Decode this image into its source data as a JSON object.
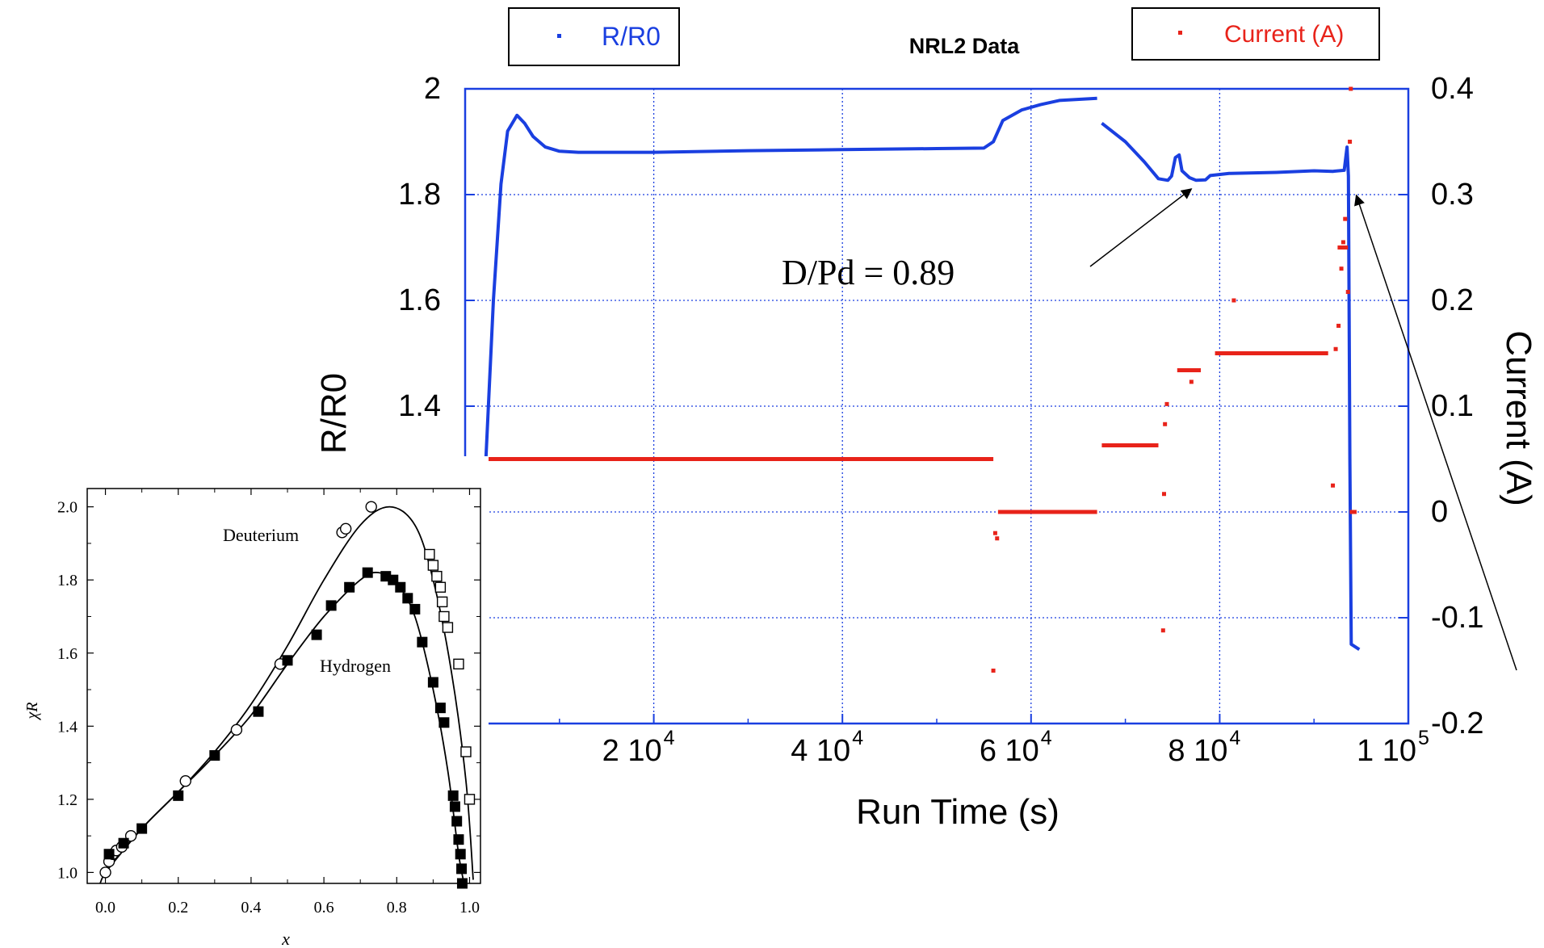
{
  "chart_data": [
    {
      "type": "scatter",
      "title": "NRL2 Data",
      "xlabel": "Run Time (s)",
      "ylabel_left": "R/R0",
      "ylabel_right": "Current (A)",
      "x_ticks": [
        {
          "value": 20000,
          "mantissa": "2 10",
          "exponent": "4"
        },
        {
          "value": 40000,
          "mantissa": "4 10",
          "exponent": "4"
        },
        {
          "value": 60000,
          "mantissa": "6 10",
          "exponent": "4"
        },
        {
          "value": 80000,
          "mantissa": "8 10",
          "exponent": "4"
        },
        {
          "value": 100000,
          "mantissa": "1 10",
          "exponent": "5"
        }
      ],
      "y_left_ticks": [
        "2",
        "1.8",
        "1.6",
        "1.4"
      ],
      "y_right_ticks": [
        "0.4",
        "0.3",
        "0.2",
        "0.1",
        "0",
        "-0.1",
        "-0.2"
      ],
      "xlim": [
        0,
        100000
      ],
      "ylim_left": [
        0.8,
        2.0
      ],
      "ylim_right": [
        -0.2,
        0.4
      ],
      "grid": true,
      "legend_left": "R/R0",
      "legend_right": "Current (A)",
      "series": [
        {
          "name": "R/R0",
          "color": "#1a3fe0",
          "axis": "left",
          "segments": [
            [
              [
                0,
                1.1
              ],
              [
                500,
                0.95
              ],
              [
                900,
                0.95
              ],
              [
                1500,
                1.0
              ],
              [
                2200,
                1.3
              ],
              [
                3000,
                1.6
              ],
              [
                3800,
                1.82
              ],
              [
                4500,
                1.92
              ],
              [
                5500,
                1.95
              ],
              [
                6300,
                1.935
              ],
              [
                7200,
                1.91
              ],
              [
                8500,
                1.89
              ],
              [
                10000,
                1.882
              ],
              [
                12000,
                1.88
              ],
              [
                20000,
                1.88
              ],
              [
                30000,
                1.883
              ],
              [
                40000,
                1.885
              ],
              [
                50000,
                1.887
              ],
              [
                55000,
                1.888
              ],
              [
                56000,
                1.9
              ],
              [
                57000,
                1.94
              ],
              [
                59000,
                1.96
              ],
              [
                61000,
                1.97
              ],
              [
                63000,
                1.978
              ],
              [
                67000,
                1.982
              ]
            ],
            [
              [
                67500,
                1.935
              ],
              [
                70000,
                1.9
              ],
              [
                72000,
                1.862
              ],
              [
                73500,
                1.83
              ],
              [
                74500,
                1.827
              ],
              [
                74900,
                1.835
              ],
              [
                75300,
                1.87
              ],
              [
                75700,
                1.875
              ],
              [
                76000,
                1.845
              ],
              [
                76800,
                1.832
              ],
              [
                77500,
                1.827
              ],
              [
                78500,
                1.828
              ],
              [
                79000,
                1.836
              ],
              [
                81000,
                1.84
              ],
              [
                86000,
                1.842
              ],
              [
                90000,
                1.845
              ],
              [
                92000,
                1.844
              ],
              [
                93200,
                1.846
              ],
              [
                93500,
                1.89
              ],
              [
                93650,
                1.835
              ],
              [
                93800,
                1.3
              ],
              [
                93950,
                0.95
              ],
              [
                94800,
                0.94
              ]
            ]
          ]
        },
        {
          "name": "Current (A)",
          "color": "#e8231a",
          "axis": "right",
          "segments": [
            [
              [
                2000,
                0.05
              ],
              [
                56000,
                0.05
              ]
            ],
            [
              [
                56500,
                0.0
              ],
              [
                67000,
                0.0
              ]
            ],
            [
              [
                67500,
                0.063
              ],
              [
                73500,
                0.063
              ]
            ],
            [
              [
                75500,
                0.134
              ],
              [
                78000,
                0.134
              ]
            ],
            [
              [
                79500,
                0.15
              ],
              [
                91500,
                0.15
              ]
            ],
            [
              [
                92500,
                0.25
              ],
              [
                93600,
                0.25
              ]
            ]
          ],
          "points": [
            [
              0,
              -0.03
            ],
            [
              200,
              0.003
            ],
            [
              400,
              0.028
            ],
            [
              600,
              0.042
            ],
            [
              1000,
              0.032
            ],
            [
              700,
              0.0
            ],
            [
              56000,
              -0.15
            ],
            [
              56200,
              -0.02
            ],
            [
              56400,
              -0.025
            ],
            [
              74000,
              -0.112
            ],
            [
              74100,
              0.017
            ],
            [
              74200,
              0.083
            ],
            [
              74400,
              0.102
            ],
            [
              77000,
              0.123
            ],
            [
              81500,
              0.2
            ],
            [
              92000,
              0.025
            ],
            [
              92300,
              0.154
            ],
            [
              92600,
              0.176
            ],
            [
              92900,
              0.23
            ],
            [
              93100,
              0.255
            ],
            [
              93300,
              0.277
            ],
            [
              93600,
              0.208
            ],
            [
              93800,
              0.35
            ],
            [
              93900,
              0.4
            ],
            [
              94000,
              0.0
            ],
            [
              94300,
              0.0
            ]
          ]
        }
      ],
      "annotations": [
        {
          "text": "D/Pd = 0.89",
          "target_x": 77000,
          "target_y": 1.82
        },
        {
          "text": "",
          "target_x": 93800,
          "target_y": 1.82
        }
      ]
    },
    {
      "type": "scatter",
      "title": "",
      "xlabel": "x",
      "ylabel": "χR",
      "xlim": [
        -0.05,
        1.03
      ],
      "ylim": [
        0.97,
        2.05
      ],
      "x_ticks": [
        "0.0",
        "0.2",
        "0.4",
        "0.6",
        "0.8",
        "1.0"
      ],
      "y_ticks": [
        "2.0",
        "1.8",
        "1.6",
        "1.4",
        "1.2",
        "1.0"
      ],
      "series": [
        {
          "name": "Deuterium",
          "marker": "open",
          "points": [
            [
              0.0,
              1.0
            ],
            [
              0.01,
              1.03
            ],
            [
              0.02,
              1.05
            ],
            [
              0.03,
              1.06
            ],
            [
              0.045,
              1.07
            ],
            [
              0.07,
              1.1
            ],
            [
              0.22,
              1.25
            ],
            [
              0.36,
              1.39
            ],
            [
              0.48,
              1.57
            ],
            [
              0.65,
              1.93
            ],
            [
              0.66,
              1.94
            ],
            [
              0.73,
              2.0
            ],
            [
              0.89,
              1.87
            ],
            [
              0.9,
              1.84
            ],
            [
              0.91,
              1.81
            ],
            [
              0.92,
              1.78
            ],
            [
              0.925,
              1.74
            ],
            [
              0.93,
              1.7
            ],
            [
              0.94,
              1.67
            ],
            [
              0.97,
              1.57
            ],
            [
              0.99,
              1.33
            ],
            [
              1.0,
              1.2
            ]
          ],
          "curve": [
            [
              -0.02,
              0.94
            ],
            [
              0.0,
              1.0
            ],
            [
              0.1,
              1.12
            ],
            [
              0.2,
              1.22
            ],
            [
              0.3,
              1.33
            ],
            [
              0.4,
              1.46
            ],
            [
              0.5,
              1.62
            ],
            [
              0.6,
              1.8
            ],
            [
              0.7,
              1.95
            ],
            [
              0.78,
              2.0
            ],
            [
              0.85,
              1.95
            ],
            [
              0.9,
              1.8
            ],
            [
              0.95,
              1.55
            ],
            [
              0.99,
              1.25
            ],
            [
              1.01,
              0.98
            ]
          ]
        },
        {
          "name": "Hydrogen",
          "marker": "filled",
          "points": [
            [
              0.01,
              1.05
            ],
            [
              0.05,
              1.08
            ],
            [
              0.1,
              1.12
            ],
            [
              0.2,
              1.21
            ],
            [
              0.3,
              1.32
            ],
            [
              0.42,
              1.44
            ],
            [
              0.5,
              1.58
            ],
            [
              0.58,
              1.65
            ],
            [
              0.62,
              1.73
            ],
            [
              0.67,
              1.78
            ],
            [
              0.72,
              1.82
            ],
            [
              0.77,
              1.81
            ],
            [
              0.79,
              1.8
            ],
            [
              0.81,
              1.78
            ],
            [
              0.83,
              1.75
            ],
            [
              0.85,
              1.72
            ],
            [
              0.87,
              1.63
            ],
            [
              0.9,
              1.52
            ],
            [
              0.92,
              1.45
            ],
            [
              0.93,
              1.41
            ],
            [
              0.955,
              1.21
            ],
            [
              0.96,
              1.18
            ],
            [
              0.965,
              1.14
            ],
            [
              0.97,
              1.09
            ],
            [
              0.975,
              1.05
            ],
            [
              0.978,
              1.01
            ],
            [
              0.98,
              0.97
            ]
          ],
          "curve": [
            [
              0.0,
              1.0
            ],
            [
              0.1,
              1.12
            ],
            [
              0.2,
              1.22
            ],
            [
              0.3,
              1.32
            ],
            [
              0.4,
              1.43
            ],
            [
              0.5,
              1.57
            ],
            [
              0.6,
              1.7
            ],
            [
              0.7,
              1.8
            ],
            [
              0.75,
              1.82
            ],
            [
              0.8,
              1.79
            ],
            [
              0.85,
              1.7
            ],
            [
              0.9,
              1.5
            ],
            [
              0.94,
              1.28
            ],
            [
              0.97,
              1.05
            ],
            [
              0.985,
              0.97
            ]
          ]
        }
      ]
    }
  ]
}
